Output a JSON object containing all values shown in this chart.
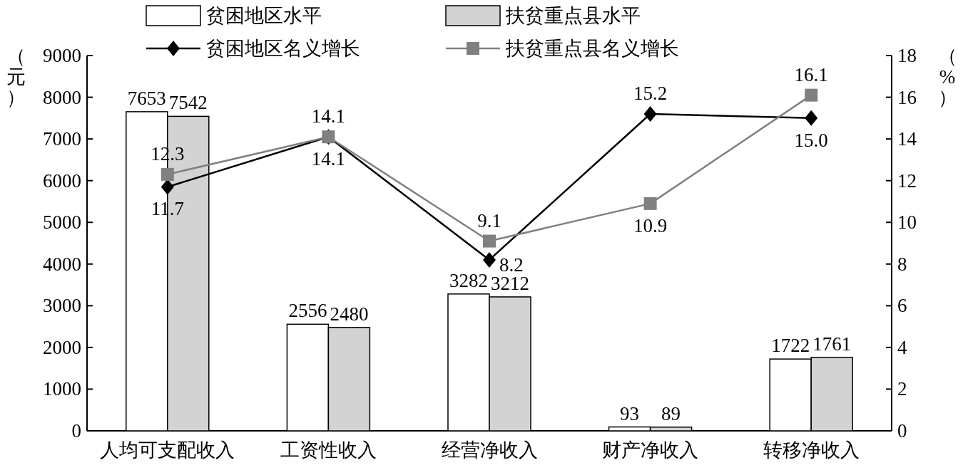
{
  "chart_data": {
    "type": "bar",
    "categories": [
      "人均可支配收入",
      "工资性收入",
      "经营净收入",
      "财产净收入",
      "转移净收入"
    ],
    "series": [
      {
        "name": "贫困地区水平",
        "color": "#ffffff",
        "values": [
          7653,
          2556,
          3282,
          93,
          1722
        ],
        "value_labels": [
          "7653",
          "2556",
          "3282",
          "93",
          "1722"
        ]
      },
      {
        "name": "扶贫重点县水平",
        "color": "#d3d3d3",
        "values": [
          7542,
          2480,
          3212,
          89,
          1761
        ],
        "value_labels": [
          "7542",
          "2480",
          "3212",
          "89",
          "1761"
        ]
      },
      {
        "name": "贫困地区名义增长",
        "type": "line",
        "axis": "y2",
        "color": "#000000",
        "marker": "diamond",
        "values": [
          11.7,
          14.1,
          8.2,
          15.2,
          15.0
        ],
        "value_labels": [
          "11.7",
          "14.1",
          "8.2",
          "15.2",
          "15.0"
        ]
      },
      {
        "name": "扶贫重点县名义增长",
        "type": "line",
        "axis": "y2",
        "color": "#808080",
        "marker": "square",
        "values": [
          12.3,
          14.1,
          9.1,
          10.9,
          16.1
        ],
        "value_labels": [
          "12.3",
          "14.1",
          "9.1",
          "10.9",
          "16.1"
        ]
      }
    ],
    "ylabel": "（元）",
    "y2label": "（%）",
    "ylim": [
      0,
      9000
    ],
    "yticks": [
      0,
      1000,
      2000,
      3000,
      4000,
      5000,
      6000,
      7000,
      8000,
      9000
    ],
    "y2lim": [
      0,
      18
    ],
    "y2ticks": [
      0,
      2,
      4,
      6,
      8,
      10,
      12,
      14,
      16,
      18
    ],
    "legend": "top",
    "grid": false
  }
}
